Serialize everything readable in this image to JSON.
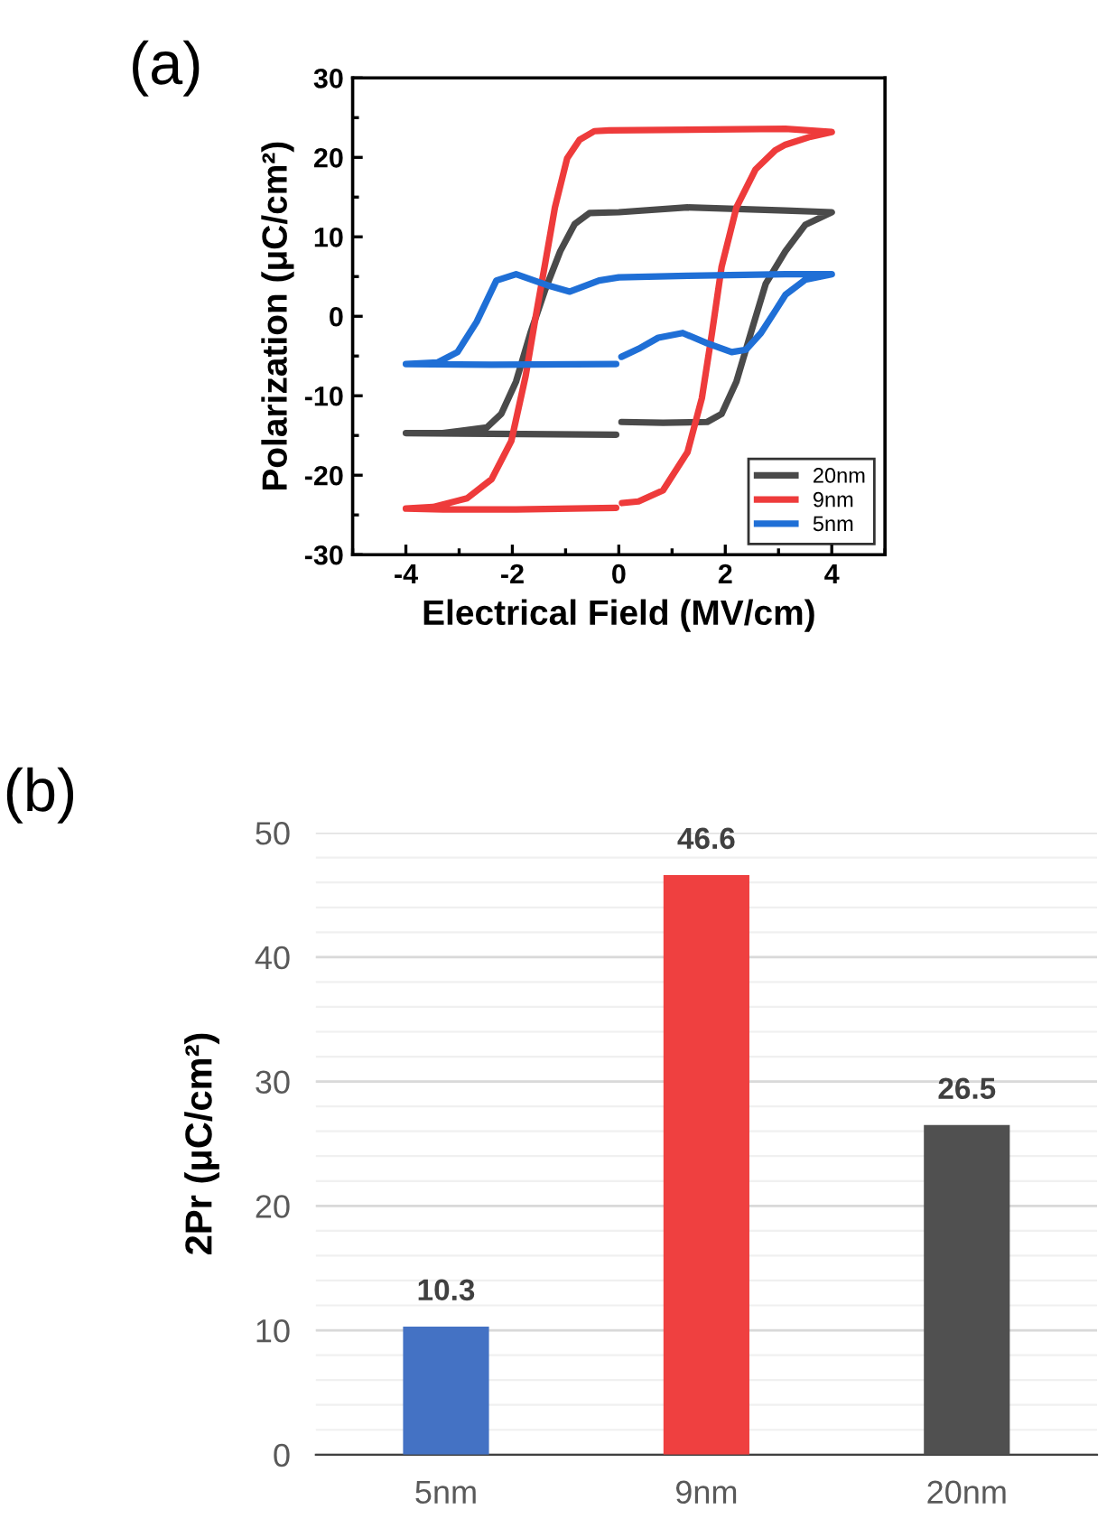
{
  "chart_data": [
    {
      "type": "line",
      "title": "(a)",
      "xlabel": "Electrical Field (MV/cm)",
      "ylabel": "Polarization (μC/cm²)",
      "xlim": [
        -5,
        5
      ],
      "xticks": [
        -4,
        -2,
        0,
        2,
        4
      ],
      "ylim": [
        -30,
        30
      ],
      "yticks": [
        -30,
        -20,
        -10,
        0,
        10,
        20,
        30
      ],
      "grid": false,
      "legend": "bottom right",
      "marker": "none",
      "line_style": "solid",
      "series": [
        {
          "name": "20nm",
          "color": "#4a4a4a",
          "x": [
            0.05,
            0.83,
            1.66,
            1.93,
            2.21,
            2.48,
            2.76,
            3.13,
            3.5,
            4.0,
            3.13,
            1.29,
            0.0,
            -0.55,
            -0.83,
            -1.1,
            -1.38,
            -1.66,
            -1.93,
            -2.21,
            -2.48,
            -3.31,
            -4.0,
            -2.39,
            -0.05
          ],
          "values": [
            -13.3,
            -13.4,
            -13.3,
            -12.3,
            -8.2,
            -2.1,
            4.1,
            8.2,
            11.5,
            13.1,
            13.3,
            13.7,
            13.1,
            13.0,
            11.6,
            8.2,
            3.4,
            -2.1,
            -8.2,
            -12.3,
            -14.0,
            -14.7,
            -14.7,
            -14.8,
            -14.9
          ]
        },
        {
          "name": "9nm",
          "color": "#ee3b3b",
          "x": [
            0.06,
            0.37,
            0.83,
            1.29,
            1.56,
            1.75,
            1.93,
            2.21,
            2.57,
            2.94,
            3.13,
            3.6,
            4.0,
            3.13,
            -0.18,
            -0.46,
            -0.74,
            -0.97,
            -1.2,
            -1.38,
            -1.56,
            -1.75,
            -2.02,
            -2.39,
            -2.85,
            -3.49,
            -4.0,
            -3.3,
            -1.93,
            -0.05
          ],
          "values": [
            -23.5,
            -23.3,
            -21.9,
            -17.1,
            -10.3,
            -2.1,
            6.2,
            13.7,
            18.5,
            20.9,
            21.6,
            22.6,
            23.2,
            23.6,
            23.4,
            23.3,
            22.2,
            19.9,
            13.7,
            6.8,
            0.0,
            -7.5,
            -15.7,
            -20.5,
            -22.9,
            -24.0,
            -24.2,
            -24.3,
            -24.3,
            -24.1
          ]
        },
        {
          "name": "5nm",
          "color": "#1f6fd6",
          "x": [
            0.05,
            0.37,
            0.74,
            1.2,
            1.66,
            2.12,
            2.39,
            2.67,
            2.94,
            3.13,
            3.5,
            4.0,
            3.13,
            1.29,
            0.0,
            -0.37,
            -0.92,
            -1.29,
            -1.93,
            -2.3,
            -2.67,
            -3.03,
            -3.4,
            -4.0,
            -2.39,
            -0.05
          ],
          "values": [
            -5.1,
            -4.1,
            -2.7,
            -2.1,
            -3.4,
            -4.5,
            -4.2,
            -2.1,
            0.7,
            2.7,
            4.6,
            5.3,
            5.3,
            5.1,
            4.9,
            4.5,
            3.1,
            3.8,
            5.3,
            4.5,
            -0.7,
            -4.5,
            -5.8,
            -6.0,
            -6.1,
            -6.0
          ]
        }
      ]
    },
    {
      "type": "bar",
      "title": "(b)",
      "ylabel": "2Pr (μC/cm²)",
      "categories": [
        "5nm",
        "9nm",
        "20nm"
      ],
      "ylim": [
        0,
        50
      ],
      "yticks": [
        0,
        10,
        20,
        30,
        40,
        50
      ],
      "grid": "y",
      "data_labels": true,
      "series": [
        {
          "values": [
            10.3,
            46.6,
            26.5
          ],
          "colors": [
            "#4472c4",
            "#ef4040",
            "#505050"
          ]
        }
      ]
    }
  ]
}
